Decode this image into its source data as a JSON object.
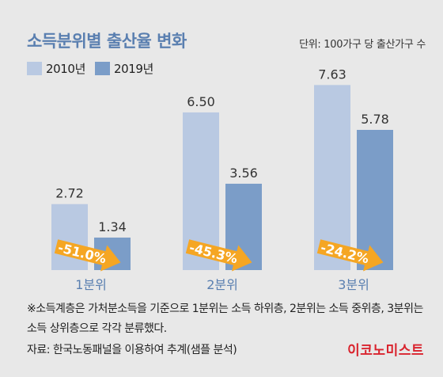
{
  "title": "소득분위별 출산율 변화",
  "unit_note": "단위: 100가구 당 출산가구 수",
  "legend": [
    {
      "label": "2010년",
      "color": "#b9c9e2"
    },
    {
      "label": "2019년",
      "color": "#7b9dc8"
    }
  ],
  "chart_data": {
    "type": "bar",
    "categories": [
      "1분위",
      "2분위",
      "3분위"
    ],
    "series": [
      {
        "name": "2010년",
        "values": [
          2.72,
          6.5,
          7.63
        ],
        "labels": [
          "2.72",
          "6.50",
          "7.63"
        ],
        "color": "#b9c9e2"
      },
      {
        "name": "2019년",
        "values": [
          1.34,
          3.56,
          5.78
        ],
        "labels": [
          "1.34",
          "3.56",
          "5.78"
        ],
        "color": "#7b9dc8"
      }
    ],
    "changes": [
      "-51.0%",
      "-45.3%",
      "-24.2%"
    ],
    "arrow_color": "#f5a623",
    "ylim": [
      0,
      8
    ]
  },
  "footnote": "※소득계층은 가처분소득을 기준으로 1분위는 소득 하위층, 2분위는 소득 중위층, 3분위는 소득 상위층으로 각각 분류했다.",
  "source": "자료: 한국노동패널을 이용하여 추계(샘플 분석)",
  "logo": "이코노미스트"
}
